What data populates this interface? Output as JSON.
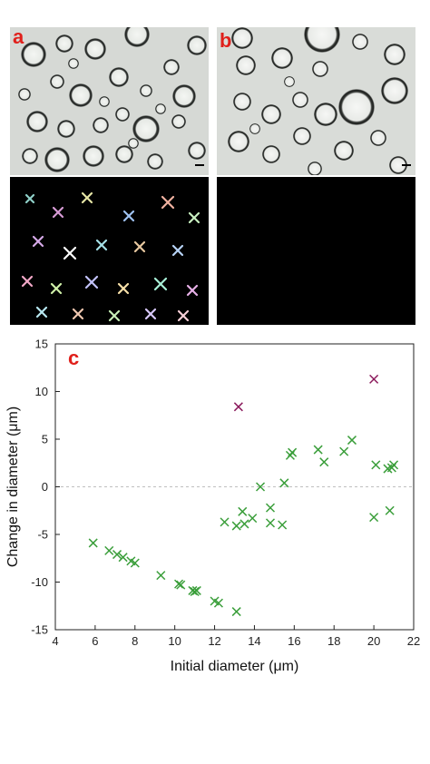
{
  "panels": {
    "a_label": "a",
    "b_label": "b",
    "c_label": "c"
  },
  "colors": {
    "green_marker": "#3a9e3a",
    "purple_marker": "#8b1a5c",
    "label_red": "#e0201b",
    "micrograph_bg": "#d9dcd8",
    "dark_bg": "#000000"
  },
  "chart_data": {
    "type": "scatter",
    "title": "",
    "xlabel": "Initial diameter (μm)",
    "ylabel": "Change in diameter (μm)",
    "xlim": [
      4,
      22
    ],
    "ylim": [
      -15,
      15
    ],
    "xticks": [
      4,
      6,
      8,
      10,
      12,
      14,
      16,
      18,
      20,
      22
    ],
    "yticks": [
      -15,
      -10,
      -5,
      0,
      5,
      10,
      15
    ],
    "xtick_labels": [
      "4",
      "6",
      "8",
      "10",
      "12",
      "14",
      "16",
      "18",
      "20",
      "22"
    ],
    "ytick_labels": [
      "-15",
      "-10",
      "-5",
      "0",
      "5",
      "10",
      "15"
    ],
    "zero_line": true,
    "marker": "x",
    "series": [
      {
        "color": "#3a9e3a",
        "points": [
          [
            5.9,
            -5.9
          ],
          [
            6.7,
            -6.7
          ],
          [
            7.1,
            -7.1
          ],
          [
            7.4,
            -7.4
          ],
          [
            7.8,
            -7.8
          ],
          [
            8.0,
            -8.0
          ],
          [
            9.3,
            -9.3
          ],
          [
            10.2,
            -10.2
          ],
          [
            10.3,
            -10.3
          ],
          [
            10.9,
            -10.9
          ],
          [
            11.0,
            -11.0
          ],
          [
            11.1,
            -10.9
          ],
          [
            12.0,
            -12.0
          ],
          [
            12.2,
            -12.2
          ],
          [
            13.1,
            -13.1
          ],
          [
            12.5,
            -3.7
          ],
          [
            13.1,
            -4.1
          ],
          [
            13.4,
            -2.6
          ],
          [
            13.5,
            -3.9
          ],
          [
            13.9,
            -3.3
          ],
          [
            14.3,
            0.0
          ],
          [
            14.8,
            -2.2
          ],
          [
            14.8,
            -3.8
          ],
          [
            15.4,
            -4.0
          ],
          [
            15.5,
            0.4
          ],
          [
            15.8,
            3.3
          ],
          [
            15.9,
            3.6
          ],
          [
            17.2,
            3.9
          ],
          [
            17.5,
            2.6
          ],
          [
            18.5,
            3.7
          ],
          [
            18.9,
            4.9
          ],
          [
            20.1,
            2.3
          ],
          [
            20.7,
            1.9
          ],
          [
            20.9,
            2.0
          ],
          [
            21.0,
            2.3
          ],
          [
            20.0,
            -3.2
          ],
          [
            20.8,
            -2.5
          ]
        ]
      },
      {
        "color": "#8b1a5c",
        "points": [
          [
            13.2,
            8.4
          ],
          [
            20.0,
            11.3
          ]
        ]
      }
    ]
  }
}
